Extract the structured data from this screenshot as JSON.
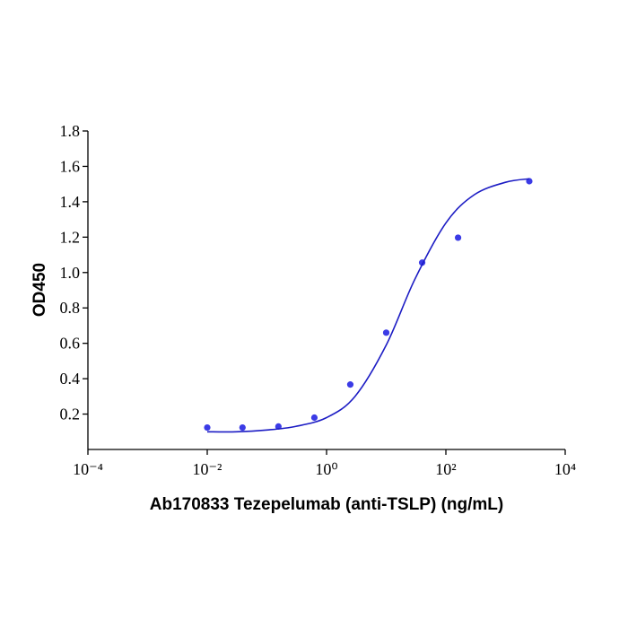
{
  "chart_data": {
    "type": "scatter",
    "x_label": "Ab170833 Tezepelumab (anti-TSLP) (ng/mL)",
    "y_label": "OD450",
    "xscale": "log",
    "xlim": [
      0.0001,
      10000
    ],
    "xticks": [
      {
        "value": 0.0001,
        "label": "10⁻⁴"
      },
      {
        "value": 0.01,
        "label": "10⁻²"
      },
      {
        "value": 1,
        "label": "10⁰"
      },
      {
        "value": 100,
        "label": "10²"
      },
      {
        "value": 10000,
        "label": "10⁴"
      }
    ],
    "ylim": [
      0,
      1.8
    ],
    "yticks": [
      0.2,
      0.4,
      0.6,
      0.8,
      {
        "value": 1,
        "label": "1.0"
      },
      1.2,
      1.4,
      1.6,
      1.8
    ],
    "series": [
      {
        "type": "scatter",
        "color": "#3b3be6",
        "x": [
          0.01,
          0.039,
          0.156,
          0.625,
          2.5,
          10,
          40,
          160,
          2500
        ],
        "values": [
          0.124,
          0.124,
          0.13,
          0.18,
          0.367,
          0.66,
          1.056,
          1.197,
          1.516
        ]
      },
      {
        "type": "line",
        "color": "#1c1cc4",
        "x": [
          0.01,
          0.03,
          0.1,
          0.3,
          1,
          3,
          10,
          30,
          100,
          300,
          1000,
          2500
        ],
        "values": [
          0.1,
          0.1,
          0.11,
          0.13,
          0.18,
          0.3,
          0.59,
          0.96,
          1.28,
          1.44,
          1.51,
          1.53
        ]
      }
    ]
  }
}
